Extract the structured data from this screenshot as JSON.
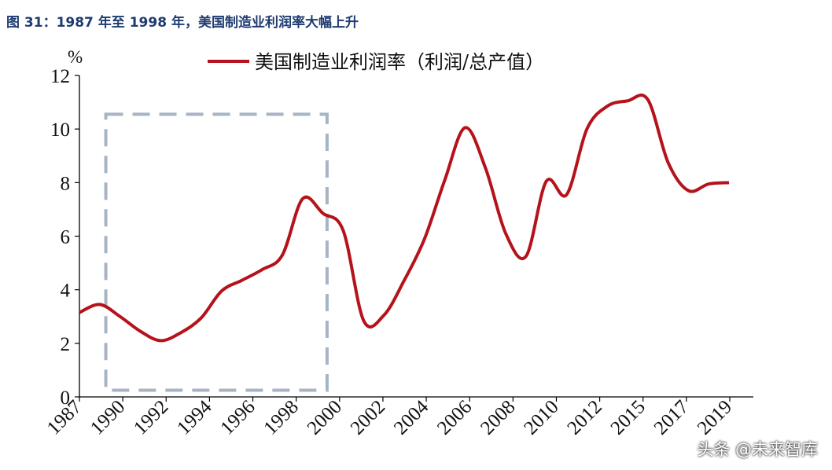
{
  "title": "图 31：1987 年至 1998 年，美国制造业利润率大幅上升",
  "watermark": "头条 @未来智库",
  "chart_data": {
    "type": "line",
    "unit": "%",
    "ylim": [
      0,
      12
    ],
    "yticks": [
      0,
      2,
      4,
      6,
      8,
      10,
      12
    ],
    "xlim": [
      1987,
      2020.2
    ],
    "xticks": [
      "1987",
      "1990",
      "1992",
      "1994",
      "1996",
      "1998",
      "2000",
      "2002",
      "2004",
      "2006",
      "2008",
      "2010",
      "2012",
      "2015",
      "2017",
      "2019"
    ],
    "series": [
      {
        "name": "美国制造业利润率（利润/总产值）",
        "color": "#b5121b",
        "points": [
          [
            1987,
            3.15
          ],
          [
            1988,
            3.45
          ],
          [
            1989,
            3.0
          ],
          [
            1990,
            2.45
          ],
          [
            1991,
            2.1
          ],
          [
            1992,
            2.4
          ],
          [
            1993,
            2.95
          ],
          [
            1994,
            3.95
          ],
          [
            1995,
            4.35
          ],
          [
            1996,
            4.75
          ],
          [
            1997,
            5.3
          ],
          [
            1998,
            7.4
          ],
          [
            1999,
            6.85
          ],
          [
            2000,
            6.2
          ],
          [
            2001,
            2.85
          ],
          [
            2002,
            3.05
          ],
          [
            2003,
            4.35
          ],
          [
            2004,
            5.9
          ],
          [
            2005,
            8.1
          ],
          [
            2006,
            10.05
          ],
          [
            2007,
            8.55
          ],
          [
            2008,
            6.1
          ],
          [
            2009,
            5.25
          ],
          [
            2010,
            8.05
          ],
          [
            2011,
            7.55
          ],
          [
            2012,
            10.0
          ],
          [
            2013,
            10.85
          ],
          [
            2014,
            11.05
          ],
          [
            2015,
            11.1
          ],
          [
            2016,
            8.75
          ],
          [
            2017,
            7.7
          ],
          [
            2018,
            7.95
          ],
          [
            2019,
            8.0
          ]
        ]
      }
    ],
    "highlight_box": {
      "x_from": 1988.3,
      "x_to": 1999.2,
      "y_from": 0.25,
      "y_to": 10.55,
      "color": "#a7b4c4"
    },
    "legend": "top-center",
    "grid": false
  }
}
